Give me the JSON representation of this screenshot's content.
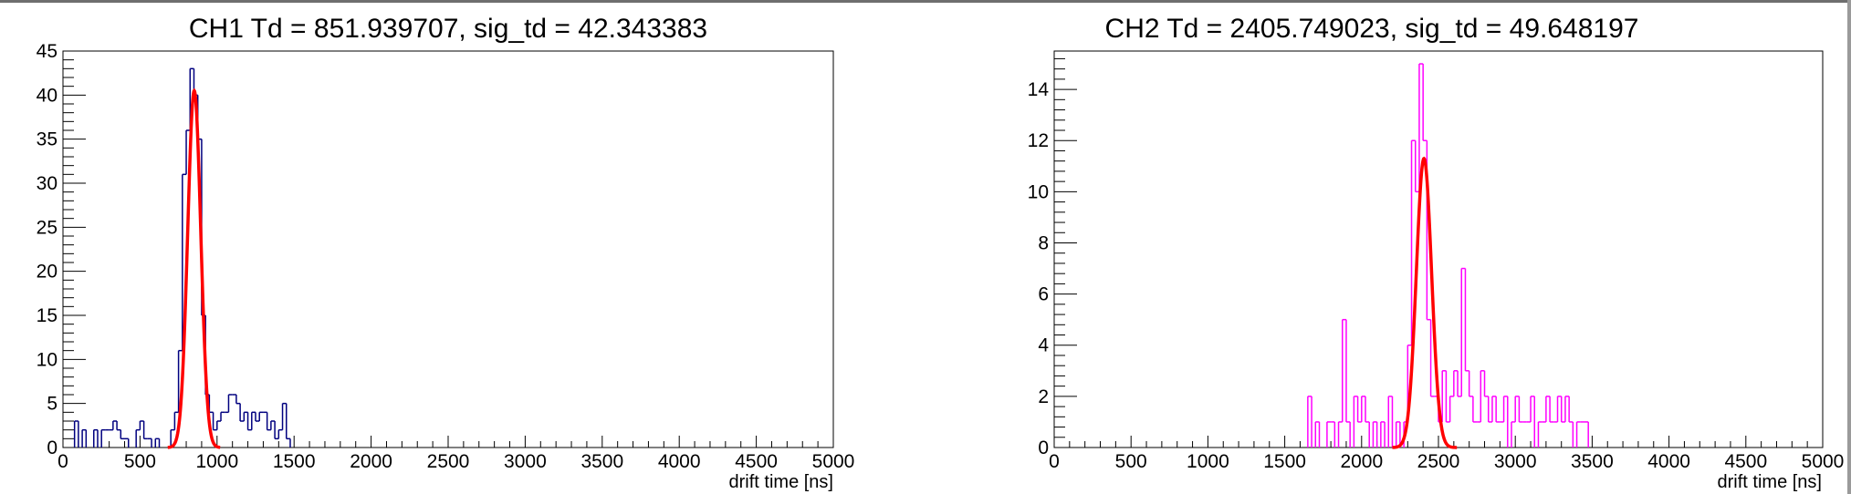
{
  "chart_data": [
    {
      "type": "histogram",
      "title": "CH1 Td = 851.939707, sig_td = 42.343383",
      "xlabel": "drift time [ns]",
      "xlim": [
        0,
        5000
      ],
      "ylim": [
        0,
        45
      ],
      "xticks": [
        "0",
        "500",
        "1000",
        "1500",
        "2000",
        "2500",
        "3000",
        "3500",
        "4000",
        "4500",
        "5000"
      ],
      "yticks": [
        "0",
        "5",
        "10",
        "15",
        "20",
        "25",
        "30",
        "35",
        "40",
        "45"
      ],
      "grid": false,
      "bin_width": 25,
      "hist_color": "#00007f",
      "fit_color": "#ff0000",
      "bins": [
        [
          75,
          3
        ],
        [
          125,
          2
        ],
        [
          200,
          2
        ],
        [
          250,
          2
        ],
        [
          275,
          2
        ],
        [
          300,
          2
        ],
        [
          325,
          3
        ],
        [
          350,
          2
        ],
        [
          375,
          1
        ],
        [
          400,
          1
        ],
        [
          475,
          2
        ],
        [
          500,
          3
        ],
        [
          525,
          1
        ],
        [
          550,
          1
        ],
        [
          600,
          1
        ],
        [
          700,
          2
        ],
        [
          725,
          4
        ],
        [
          750,
          11
        ],
        [
          775,
          31
        ],
        [
          800,
          36
        ],
        [
          825,
          43
        ],
        [
          850,
          40
        ],
        [
          875,
          35
        ],
        [
          900,
          15
        ],
        [
          925,
          6
        ],
        [
          950,
          4
        ],
        [
          975,
          2
        ],
        [
          1000,
          3
        ],
        [
          1025,
          4
        ],
        [
          1050,
          4
        ],
        [
          1075,
          6
        ],
        [
          1100,
          6
        ],
        [
          1125,
          5
        ],
        [
          1150,
          3
        ],
        [
          1175,
          4
        ],
        [
          1200,
          2
        ],
        [
          1225,
          4
        ],
        [
          1250,
          3
        ],
        [
          1275,
          4
        ],
        [
          1300,
          4
        ],
        [
          1325,
          2
        ],
        [
          1350,
          3
        ],
        [
          1375,
          1
        ],
        [
          1400,
          2
        ],
        [
          1425,
          5
        ],
        [
          1450,
          1
        ]
      ],
      "fit": {
        "function": "gaus",
        "amplitude": 40.5,
        "mean": 851.939707,
        "sigma": 42.343383,
        "range": [
          680,
          1020
        ]
      }
    },
    {
      "type": "histogram",
      "title": "CH2 Td = 2405.749023, sig_td = 49.648197",
      "xlabel": "drift time [ns]",
      "xlim": [
        0,
        5000
      ],
      "ylim": [
        0,
        15.5
      ],
      "xticks": [
        "0",
        "500",
        "1000",
        "1500",
        "2000",
        "2500",
        "3000",
        "3500",
        "4000",
        "4500",
        "5000"
      ],
      "yticks": [
        "0",
        "2",
        "4",
        "6",
        "8",
        "10",
        "12",
        "14"
      ],
      "grid": false,
      "bin_width": 25,
      "hist_color": "#ff00ff",
      "fit_color": "#ff0000",
      "bins": [
        [
          1650,
          2
        ],
        [
          1700,
          1
        ],
        [
          1775,
          1
        ],
        [
          1800,
          1
        ],
        [
          1850,
          1
        ],
        [
          1875,
          5
        ],
        [
          1900,
          1
        ],
        [
          1950,
          2
        ],
        [
          1975,
          1
        ],
        [
          2000,
          2
        ],
        [
          2025,
          1
        ],
        [
          2075,
          1
        ],
        [
          2125,
          1
        ],
        [
          2175,
          2
        ],
        [
          2225,
          1
        ],
        [
          2275,
          1
        ],
        [
          2300,
          4
        ],
        [
          2325,
          12
        ],
        [
          2350,
          10
        ],
        [
          2375,
          15
        ],
        [
          2400,
          12
        ],
        [
          2425,
          5
        ],
        [
          2450,
          2
        ],
        [
          2475,
          2
        ],
        [
          2500,
          1
        ],
        [
          2525,
          3
        ],
        [
          2550,
          1
        ],
        [
          2575,
          2
        ],
        [
          2600,
          3
        ],
        [
          2625,
          2
        ],
        [
          2650,
          7
        ],
        [
          2675,
          3
        ],
        [
          2700,
          2
        ],
        [
          2725,
          1
        ],
        [
          2750,
          1
        ],
        [
          2775,
          3
        ],
        [
          2800,
          2
        ],
        [
          2825,
          1
        ],
        [
          2850,
          2
        ],
        [
          2875,
          1
        ],
        [
          2900,
          1
        ],
        [
          2925,
          2
        ],
        [
          2975,
          1
        ],
        [
          3000,
          2
        ],
        [
          3025,
          1
        ],
        [
          3050,
          1
        ],
        [
          3075,
          1
        ],
        [
          3100,
          2
        ],
        [
          3150,
          1
        ],
        [
          3175,
          1
        ],
        [
          3200,
          2
        ],
        [
          3225,
          1
        ],
        [
          3250,
          1
        ],
        [
          3275,
          2
        ],
        [
          3300,
          1
        ],
        [
          3325,
          2
        ],
        [
          3350,
          1
        ],
        [
          3400,
          1
        ],
        [
          3425,
          1
        ],
        [
          3450,
          1
        ]
      ],
      "fit": {
        "function": "gaus",
        "amplitude": 11.3,
        "mean": 2405.749023,
        "sigma": 49.648197,
        "range": [
          2200,
          2620
        ]
      }
    }
  ]
}
